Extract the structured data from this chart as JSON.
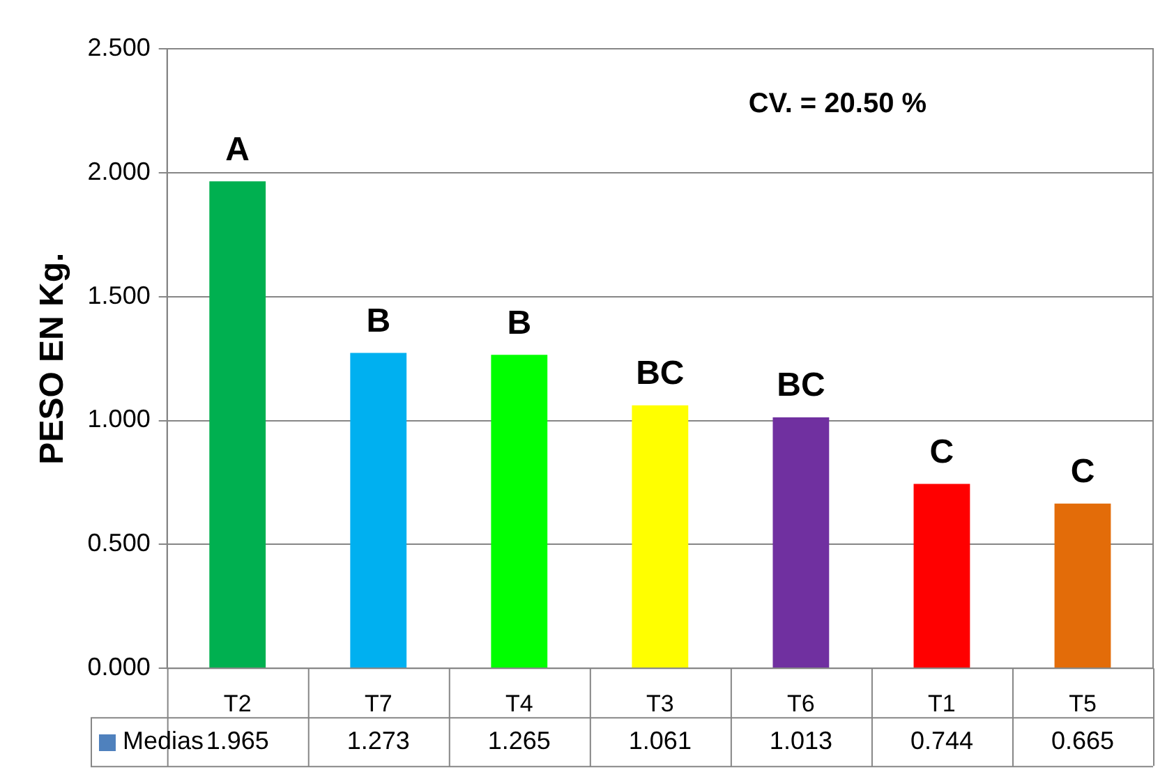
{
  "chart_data": {
    "type": "bar",
    "ylabel": "PESO EN Kg.",
    "categories": [
      "T2",
      "T7",
      "T4",
      "T3",
      "T6",
      "T1",
      "T5"
    ],
    "series": [
      {
        "name": "Medias",
        "color": "#4f81bd",
        "colors": [
          "#00b050",
          "#00b0f0",
          "#00ff00",
          "#ffff00",
          "#7030a0",
          "#ff0000",
          "#e36c09"
        ],
        "values": [
          1.965,
          1.273,
          1.265,
          1.061,
          1.013,
          0.744,
          0.665
        ]
      }
    ],
    "ylim": [
      0,
      2.5
    ],
    "yticks": [
      {
        "value": 0,
        "label": "0.000"
      },
      {
        "value": 0.5,
        "label": "0.500"
      },
      {
        "value": 1,
        "label": "1.000"
      },
      {
        "value": 1.5,
        "label": "1.500"
      },
      {
        "value": 2,
        "label": "2.000"
      },
      {
        "value": 2.5,
        "label": "2.500"
      }
    ],
    "grid": "y",
    "legend": "bottom",
    "data_labels": true,
    "annotations": [
      {
        "text": "A",
        "x": "T2",
        "y": 1.965
      },
      {
        "text": "B",
        "x": "T7",
        "y": 1.273
      },
      {
        "text": "B",
        "x": "T4",
        "y": 1.265
      },
      {
        "text": "BC",
        "x": "T3",
        "y": 1.061
      },
      {
        "text": "BC",
        "x": "T6",
        "y": 1.013
      },
      {
        "text": "C",
        "x": "T1",
        "y": 0.744
      },
      {
        "text": "C",
        "x": "T5",
        "y": 0.665
      },
      "CV. = 20.50 %"
    ]
  }
}
